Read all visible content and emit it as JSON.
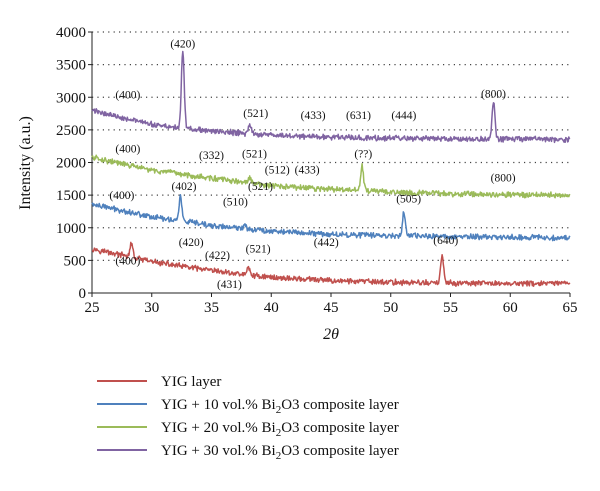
{
  "chart_data": {
    "type": "line",
    "xlabel": "2θ",
    "ylabel": "Intensity (a.u.)",
    "xlim": [
      25,
      65
    ],
    "ylim": [
      0,
      4000
    ],
    "x_ticks": [
      25,
      30,
      35,
      40,
      45,
      50,
      55,
      60,
      65
    ],
    "y_ticks": [
      0,
      500,
      1000,
      1500,
      2000,
      2500,
      3000,
      3500,
      4000
    ],
    "grid": "dotted horizontal",
    "legend_position": "bottom",
    "series": [
      {
        "name": "YIG layer",
        "legend_prefix": "YIG layer",
        "legend_sub": "",
        "legend_suffix": "",
        "color": "#c0504d",
        "background": [
          [
            25,
            680
          ],
          [
            30,
            480
          ],
          [
            35,
            340
          ],
          [
            40,
            240
          ],
          [
            45,
            190
          ],
          [
            50,
            165
          ],
          [
            55,
            150
          ],
          [
            60,
            145
          ],
          [
            65,
            145
          ]
        ],
        "peaks": [
          [
            28.3,
            750
          ],
          [
            38.1,
            390
          ],
          [
            54.3,
            580
          ]
        ]
      },
      {
        "name": "YIG + 10 vol.% Bi2O3 composite layer",
        "legend_prefix": "YIG + 10 vol.% Bi",
        "legend_sub": "2",
        "legend_suffix": "O3 composite layer",
        "color": "#4f81bd",
        "background": [
          [
            25,
            1360
          ],
          [
            30,
            1170
          ],
          [
            35,
            1030
          ],
          [
            40,
            950
          ],
          [
            45,
            900
          ],
          [
            50,
            880
          ],
          [
            55,
            865
          ],
          [
            60,
            855
          ],
          [
            65,
            850
          ]
        ],
        "peaks": [
          [
            32.4,
            1480
          ],
          [
            37.8,
            1050
          ],
          [
            51.1,
            1240
          ]
        ]
      },
      {
        "name": "YIG + 20 vol.% Bi2O3 composite layer",
        "legend_prefix": "YIG + 20 vol.% Bi",
        "legend_sub": "2",
        "legend_suffix": "O3 composite layer",
        "color": "#9bbb59",
        "background": [
          [
            25,
            2080
          ],
          [
            30,
            1880
          ],
          [
            35,
            1760
          ],
          [
            40,
            1640
          ],
          [
            45,
            1590
          ],
          [
            50,
            1550
          ],
          [
            55,
            1520
          ],
          [
            60,
            1510
          ],
          [
            65,
            1500
          ]
        ],
        "peaks": [
          [
            38.2,
            1760
          ],
          [
            47.6,
            1940
          ]
        ]
      },
      {
        "name": "YIG + 30 vol.% Bi2O3 composite layer",
        "legend_prefix": "YIG + 30 vol.% Bi",
        "legend_sub": "2",
        "legend_suffix": "O3 composite layer",
        "color": "#8064a2",
        "background": [
          [
            25,
            2800
          ],
          [
            30,
            2580
          ],
          [
            35,
            2480
          ],
          [
            40,
            2420
          ],
          [
            45,
            2390
          ],
          [
            50,
            2370
          ],
          [
            55,
            2360
          ],
          [
            60,
            2360
          ],
          [
            65,
            2350
          ]
        ],
        "peaks": [
          [
            28.2,
            2670
          ],
          [
            32.6,
            3680
          ],
          [
            38.2,
            2580
          ],
          [
            58.6,
            2920
          ]
        ]
      }
    ],
    "annotations": [
      {
        "text": "(420)",
        "x": 32.6,
        "y": 3760
      },
      {
        "text": "(400)",
        "x": 28.0,
        "y": 2980
      },
      {
        "text": "(521)",
        "x": 38.7,
        "y": 2700
      },
      {
        "text": "(433)",
        "x": 43.5,
        "y": 2670
      },
      {
        "text": "(631)",
        "x": 47.3,
        "y": 2670
      },
      {
        "text": "(444)",
        "x": 51.1,
        "y": 2670
      },
      {
        "text": "(800)",
        "x": 58.6,
        "y": 3000
      },
      {
        "text": "(400)",
        "x": 28.0,
        "y": 2150
      },
      {
        "text": "(332)",
        "x": 35.0,
        "y": 2050
      },
      {
        "text": "(521)",
        "x": 38.6,
        "y": 2080
      },
      {
        "text": "(512)",
        "x": 40.5,
        "y": 1830
      },
      {
        "text": "(433)",
        "x": 43.0,
        "y": 1830
      },
      {
        "text": "(??)",
        "x": 47.7,
        "y": 2080
      },
      {
        "text": "(800)",
        "x": 59.4,
        "y": 1710
      },
      {
        "text": "(400)",
        "x": 27.5,
        "y": 1440
      },
      {
        "text": "(402)",
        "x": 32.7,
        "y": 1580
      },
      {
        "text": "(521)",
        "x": 39.1,
        "y": 1580
      },
      {
        "text": "(510)",
        "x": 37.0,
        "y": 1340
      },
      {
        "text": "(420)",
        "x": 33.3,
        "y": 720
      },
      {
        "text": "(442)",
        "x": 44.6,
        "y": 720
      },
      {
        "text": "(505)",
        "x": 51.5,
        "y": 1390
      },
      {
        "text": "(400)",
        "x": 28.0,
        "y": 440
      },
      {
        "text": "(422)",
        "x": 35.5,
        "y": 520
      },
      {
        "text": "(521)",
        "x": 38.9,
        "y": 620
      },
      {
        "text": "(431)",
        "x": 36.5,
        "y": 80
      },
      {
        "text": "(640)",
        "x": 54.6,
        "y": 750
      }
    ]
  }
}
